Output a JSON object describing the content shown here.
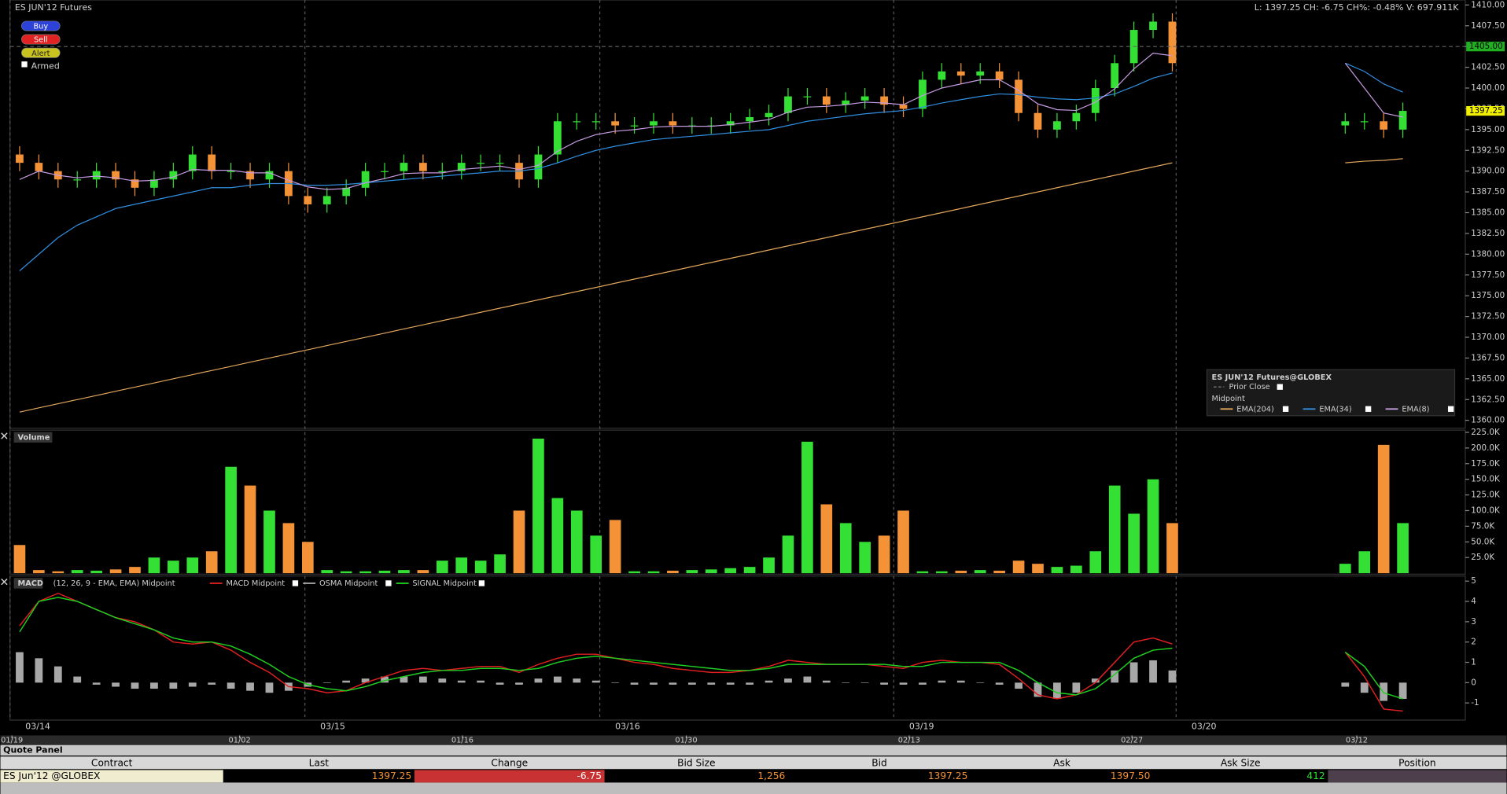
{
  "window": {
    "title": "ES JUN'12 Futures",
    "buttons": [
      "Buy",
      "Sell",
      "Alert"
    ],
    "armed": "Armed",
    "stats": "L: 1397.25 CH: -6.75 CH%: -0.48% V: 697.911K"
  },
  "chart_data": [
    {
      "type": "candlestick",
      "x": [
        0,
        1,
        2,
        3,
        4,
        5,
        6,
        7,
        8,
        9,
        10,
        11,
        12,
        13,
        14,
        15,
        16,
        17,
        18,
        19,
        20,
        21,
        22,
        23,
        24,
        25,
        26,
        27,
        28,
        29,
        30,
        31,
        32,
        33,
        34,
        35,
        36,
        37,
        38,
        39,
        40,
        41,
        42,
        43,
        44,
        45,
        46,
        47,
        48,
        49,
        50,
        51,
        52,
        53,
        54,
        55,
        56,
        57,
        58,
        59,
        60,
        69,
        70,
        71,
        72
      ],
      "open": [
        1392,
        1391,
        1390,
        1389,
        1389,
        1390,
        1389,
        1388,
        1389,
        1390,
        1392,
        1390,
        1390,
        1389,
        1390,
        1387,
        1386,
        1387,
        1388,
        1390,
        1390,
        1391,
        1390,
        1390,
        1391,
        1391,
        1391,
        1389,
        1392,
        1396,
        1396,
        1396,
        1395.5,
        1395.5,
        1396,
        1395.5,
        1395.5,
        1395.5,
        1396,
        1396.5,
        1397,
        1399,
        1399,
        1398,
        1398.5,
        1399,
        1398,
        1397.5,
        1401,
        1402,
        1401.5,
        1402,
        1401,
        1397,
        1395,
        1396,
        1397,
        1400,
        1403,
        1407,
        1408,
        1395.5,
        1396,
        1396,
        1395
      ],
      "high": [
        1393,
        1392,
        1391,
        1390,
        1391,
        1391,
        1390,
        1390,
        1391,
        1393,
        1393,
        1391,
        1391,
        1391,
        1391,
        1388,
        1388,
        1389,
        1391,
        1391,
        1392,
        1392,
        1391,
        1392,
        1392,
        1392,
        1392,
        1393,
        1397,
        1397,
        1397,
        1397,
        1396.5,
        1397,
        1397,
        1396.5,
        1396.5,
        1397,
        1397.5,
        1398,
        1400,
        1400,
        1400,
        1399.5,
        1400,
        1400,
        1399,
        1402,
        1403,
        1403,
        1403,
        1403,
        1402,
        1398,
        1397,
        1398,
        1401,
        1404,
        1408,
        1409,
        1409,
        1397,
        1397,
        1397,
        1398.25
      ],
      "low": [
        1390,
        1389,
        1388,
        1388,
        1388,
        1388,
        1387,
        1387,
        1388,
        1389,
        1389,
        1389,
        1388,
        1388,
        1386,
        1385,
        1385,
        1386,
        1387,
        1389,
        1389,
        1389,
        1389,
        1389,
        1390,
        1390,
        1388,
        1388,
        1391,
        1395,
        1395,
        1394.5,
        1394.5,
        1394.5,
        1394.5,
        1394.5,
        1394.5,
        1394.5,
        1395,
        1395.5,
        1396,
        1398,
        1397,
        1397,
        1397.5,
        1397,
        1396.5,
        1396.5,
        1400,
        1400.5,
        1400.5,
        1400,
        1396,
        1394,
        1394,
        1395,
        1396,
        1399,
        1402,
        1406,
        1402,
        1394.5,
        1395,
        1394,
        1394
      ],
      "close": [
        1391,
        1390,
        1389,
        1389,
        1390,
        1389,
        1388,
        1389,
        1390,
        1392,
        1390,
        1390,
        1389,
        1390,
        1387,
        1386,
        1387,
        1388,
        1390,
        1390,
        1391,
        1390,
        1390,
        1391,
        1391,
        1391,
        1389,
        1392,
        1396,
        1396,
        1396,
        1395.5,
        1395.5,
        1396,
        1395.5,
        1395.5,
        1395.5,
        1396,
        1396.5,
        1397,
        1399,
        1399,
        1398,
        1398.5,
        1399,
        1398,
        1397.5,
        1401,
        1402,
        1401.5,
        1402,
        1401,
        1397,
        1395,
        1396,
        1397,
        1400,
        1403,
        1407,
        1408,
        1403,
        1396,
        1396,
        1395,
        1397.25
      ],
      "up_color": "#33e033",
      "down_color": "#f39237",
      "overlays": [
        {
          "name": "EMA(204)",
          "color": "#e0a65c",
          "values": [
            1361,
            1361.5,
            1362,
            1362.5,
            1363,
            1363.5,
            1364,
            1364.5,
            1365,
            1365.5,
            1366,
            1366.5,
            1367,
            1367.5,
            1368,
            1368.5,
            1369,
            1369.5,
            1370,
            1370.5,
            1371,
            1371.5,
            1372,
            1372.5,
            1373,
            1373.5,
            1374,
            1374.5,
            1375,
            1375.5,
            1376,
            1376.5,
            1377,
            1377.5,
            1378,
            1378.5,
            1379,
            1379.5,
            1380,
            1380.5,
            1381,
            1381.5,
            1382,
            1382.5,
            1383,
            1383.5,
            1384,
            1384.5,
            1385,
            1385.5,
            1386,
            1386.5,
            1387,
            1387.5,
            1388,
            1388.5,
            1389,
            1389.5,
            1390,
            1390.5,
            1391,
            1391,
            1391.2,
            1391.3,
            1391.5
          ]
        },
        {
          "name": "EMA(34)",
          "color": "#2f8ee0",
          "values": [
            1378,
            1380,
            1382,
            1383.5,
            1384.5,
            1385.5,
            1386,
            1386.5,
            1387,
            1387.5,
            1388,
            1388,
            1388.3,
            1388.5,
            1388.5,
            1388.3,
            1388.3,
            1388.4,
            1388.6,
            1388.8,
            1389,
            1389.2,
            1389.4,
            1389.6,
            1389.8,
            1390,
            1390,
            1390.3,
            1391,
            1391.8,
            1392.5,
            1393,
            1393.4,
            1393.8,
            1394,
            1394.2,
            1394.4,
            1394.6,
            1394.8,
            1395,
            1395.5,
            1396,
            1396.3,
            1396.6,
            1396.9,
            1397.1,
            1397.3,
            1397.7,
            1398.2,
            1398.6,
            1399,
            1399.3,
            1399.2,
            1398.9,
            1398.7,
            1398.6,
            1398.8,
            1399.3,
            1400.2,
            1401.2,
            1401.8,
            1403,
            1402,
            1400.5,
            1399.5
          ]
        },
        {
          "name": "EMA(8)",
          "color": "#c49ae0",
          "values": [
            1389,
            1390,
            1389.5,
            1389.2,
            1389.4,
            1389.2,
            1388.8,
            1388.9,
            1389.3,
            1390.2,
            1390.1,
            1390.1,
            1389.8,
            1389.8,
            1388.9,
            1388.1,
            1387.8,
            1387.9,
            1388.6,
            1389.1,
            1389.7,
            1389.8,
            1389.8,
            1390.2,
            1390.4,
            1390.6,
            1390.2,
            1390.7,
            1392.4,
            1393.6,
            1394.4,
            1394.8,
            1395,
            1395.3,
            1395.4,
            1395.4,
            1395.4,
            1395.6,
            1395.9,
            1396.2,
            1397.1,
            1397.7,
            1397.8,
            1398,
            1398.3,
            1398.2,
            1398,
            1399.1,
            1400,
            1400.5,
            1401,
            1401,
            1399.7,
            1398.1,
            1397.4,
            1397.3,
            1398.3,
            1399.9,
            1402.3,
            1404.2,
            1403.9,
            1403,
            1400,
            1397,
            1396.5
          ]
        }
      ],
      "price_markers": [
        {
          "value": 1405,
          "label": "1405.00",
          "color": "#22b022"
        },
        {
          "value": 1397.25,
          "label": "1397.25",
          "color": "#f0f000"
        }
      ],
      "legend": {
        "title": "ES JUN'12 Futures@GLOBEX",
        "prior_close": "Prior Close",
        "group": "Midpoint"
      },
      "xlim": [
        -0.5,
        75.25
      ],
      "xticks": [
        {
          "value": -0.5,
          "label": "03/14"
        },
        {
          "value": 14.85,
          "label": "03/15"
        },
        {
          "value": 30.2,
          "label": "03/16"
        },
        {
          "value": 45.5,
          "label": "03/19"
        },
        {
          "value": 60.2,
          "label": "03/20"
        }
      ],
      "xticks_lower": [
        {
          "value": -0.4,
          "label": "01/19"
        },
        {
          "value": 11.45,
          "label": "01/02"
        },
        {
          "value": 23.05,
          "label": "01/16"
        },
        {
          "value": 34.7,
          "label": "01/30"
        },
        {
          "value": 46.3,
          "label": "02/13"
        },
        {
          "value": 57.9,
          "label": "02/27"
        },
        {
          "value": 69.6,
          "label": "03/12"
        }
      ],
      "ylim": [
        1359.4,
        1410.6
      ],
      "yticks": [
        {
          "value": 1360,
          "label": "1360.00"
        },
        {
          "value": 1362.5,
          "label": "1362.50"
        },
        {
          "value": 1365,
          "label": "1365.00"
        },
        {
          "value": 1367.5,
          "label": "1367.50"
        },
        {
          "value": 1370,
          "label": "1370.00"
        },
        {
          "value": 1372.5,
          "label": "1372.50"
        },
        {
          "value": 1375,
          "label": "1375.00"
        },
        {
          "value": 1377.5,
          "label": "1377.50"
        },
        {
          "value": 1380,
          "label": "1380.00"
        },
        {
          "value": 1382.5,
          "label": "1382.50"
        },
        {
          "value": 1385,
          "label": "1385.00"
        },
        {
          "value": 1387.5,
          "label": "1387.50"
        },
        {
          "value": 1390,
          "label": "1390.00"
        },
        {
          "value": 1392.5,
          "label": "1392.50"
        },
        {
          "value": 1395,
          "label": "1395.00"
        },
        {
          "value": 1397.5,
          "label": "1397.50"
        },
        {
          "value": 1400,
          "label": "1400.00"
        },
        {
          "value": 1402.5,
          "label": "1402.50"
        },
        {
          "value": 1405,
          "label": "1405.00"
        },
        {
          "value": 1407.5,
          "label": "1407.50"
        },
        {
          "value": 1410,
          "label": "1410.00"
        }
      ]
    },
    {
      "type": "bar",
      "title": "Volume",
      "values": [
        45000,
        5000,
        3000,
        5000,
        4000,
        6000,
        10000,
        25000,
        20000,
        25000,
        35000,
        170000,
        140000,
        100000,
        80000,
        50000,
        5000,
        3000,
        3000,
        4000,
        5000,
        5000,
        20000,
        25000,
        20000,
        30000,
        100000,
        215000,
        120000,
        100000,
        60000,
        85000,
        3000,
        3000,
        4000,
        5000,
        6000,
        8000,
        10000,
        25000,
        60000,
        210000,
        110000,
        80000,
        50000,
        60000,
        100000,
        3000,
        3000,
        4000,
        5000,
        4000,
        20000,
        15000,
        10000,
        12000,
        35000,
        140000,
        95000,
        150000,
        80000,
        15000,
        35000,
        205000,
        80000
      ],
      "ylim": [
        0,
        227000
      ],
      "yticks": [
        {
          "value": 25000,
          "label": "25.0K"
        },
        {
          "value": 50000,
          "label": "50.0K"
        },
        {
          "value": 75000,
          "label": "75.0K"
        },
        {
          "value": 100000,
          "label": "100.0K"
        },
        {
          "value": 125000,
          "label": "125.0K"
        },
        {
          "value": 150000,
          "label": "150.0K"
        },
        {
          "value": 175000,
          "label": "175.0K"
        },
        {
          "value": 200000,
          "label": "200.0K"
        },
        {
          "value": 225000,
          "label": "225.0K"
        }
      ]
    },
    {
      "type": "line",
      "title": "MACD",
      "subtitle": "(12, 26, 9 - EMA, EMA) Midpoint",
      "series": [
        {
          "name": "MACD Midpoint",
          "color": "#e02020",
          "values": [
            2.8,
            4,
            4.4,
            4,
            3.6,
            3.2,
            3,
            2.6,
            2,
            1.9,
            2,
            1.6,
            1,
            0.5,
            -0.2,
            -0.3,
            -0.5,
            -0.4,
            0,
            0.3,
            0.6,
            0.7,
            0.6,
            0.7,
            0.8,
            0.8,
            0.5,
            0.9,
            1.2,
            1.4,
            1.4,
            1.2,
            1,
            0.9,
            0.7,
            0.6,
            0.5,
            0.5,
            0.6,
            0.8,
            1.1,
            1,
            0.9,
            0.9,
            0.9,
            0.8,
            0.7,
            1,
            1.1,
            1,
            1,
            0.9,
            0.2,
            -0.6,
            -0.8,
            -0.6,
            0,
            1,
            2,
            2.2,
            1.9,
            1.5,
            0.3,
            -1.3,
            -1.4
          ]
        },
        {
          "name": "OSMA Midpoint",
          "color": "#a8a8a8",
          "type": "bar",
          "values": [
            1.5,
            1.2,
            0.8,
            0.3,
            -0.1,
            -0.2,
            -0.3,
            -0.3,
            -0.3,
            -0.2,
            -0.1,
            -0.3,
            -0.4,
            -0.5,
            -0.4,
            -0.2,
            0,
            0.1,
            0.2,
            0.3,
            0.3,
            0.3,
            0.2,
            0.1,
            0.1,
            -0.1,
            -0.1,
            0.2,
            0.3,
            0.2,
            0.1,
            0,
            -0.1,
            -0.1,
            -0.1,
            -0.1,
            -0.1,
            -0.1,
            -0.1,
            0.1,
            0.2,
            0.3,
            0.1,
            0,
            0,
            -0.1,
            -0.1,
            -0.1,
            0.1,
            0.1,
            0,
            -0.1,
            -0.3,
            -0.7,
            -0.8,
            -0.5,
            0.2,
            0.6,
            1,
            1.1,
            0.6,
            -0.2,
            -0.5,
            -0.9,
            -0.8
          ]
        },
        {
          "name": "SIGNAL Midpoint",
          "color": "#20d020",
          "values": [
            2.5,
            4,
            4.2,
            4,
            3.6,
            3.2,
            2.9,
            2.6,
            2.2,
            2,
            2,
            1.8,
            1.4,
            0.9,
            0.3,
            -0.1,
            -0.3,
            -0.4,
            -0.2,
            0.1,
            0.3,
            0.5,
            0.6,
            0.6,
            0.7,
            0.7,
            0.6,
            0.7,
            1,
            1.2,
            1.3,
            1.2,
            1.1,
            1,
            0.9,
            0.8,
            0.7,
            0.6,
            0.6,
            0.7,
            0.9,
            0.9,
            0.9,
            0.9,
            0.9,
            0.9,
            0.8,
            0.8,
            1,
            1,
            1,
            1,
            0.6,
            0,
            -0.5,
            -0.6,
            -0.3,
            0.4,
            1.2,
            1.6,
            1.7,
            1.5,
            0.8,
            -0.5,
            -0.8
          ]
        }
      ],
      "ylim": [
        -1.75,
        5.25
      ],
      "yticks": [
        -1,
        0,
        1,
        2,
        3,
        4,
        5
      ]
    }
  ],
  "quote_panel": {
    "title": "Quote Panel",
    "columns": [
      "Contract",
      "Last",
      "Change",
      "Bid Size",
      "Bid",
      "Ask",
      "Ask Size",
      "Position"
    ],
    "row": [
      "ES Jun'12 @GLOBEX",
      "1397.25",
      "-6.75",
      "1,256",
      "1397.25",
      "1397.50",
      "412"
    ]
  }
}
